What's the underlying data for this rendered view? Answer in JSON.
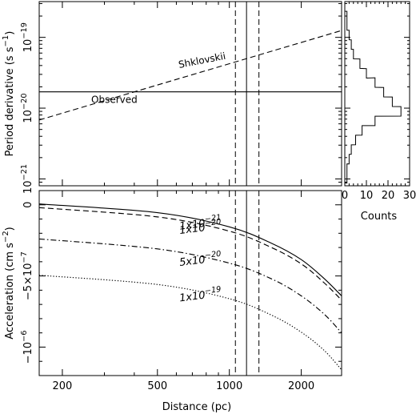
{
  "chart_data": [
    {
      "type": "line",
      "panel": "top",
      "ylabel": "Period derivative (s s",
      "ylabel_sup": "−1",
      "ylabel_close": ")",
      "xscale": "log",
      "yscale": "log",
      "xlim": [
        160,
        2950
      ],
      "ylim": [
        8e-22,
        3.2e-19
      ],
      "yticks": [
        {
          "v": 1e-21,
          "base": "10",
          "exp": "−21"
        },
        {
          "v": 1e-20,
          "base": "10",
          "exp": "−20"
        },
        {
          "v": 1e-19,
          "base": "10",
          "exp": "−19"
        }
      ],
      "series": [
        {
          "name": "Shklovskii",
          "style": "dashed",
          "x": [
            160,
            2950
          ],
          "y": [
            6.8e-21,
            1.25e-19
          ]
        },
        {
          "name": "Observed",
          "style": "solid",
          "x": [
            160,
            2950
          ],
          "y": [
            1.7e-20,
            1.7e-20
          ]
        }
      ],
      "vlines": [
        {
          "x": 1060,
          "style": "dashed"
        },
        {
          "x": 1180,
          "style": "solid"
        },
        {
          "x": 1330,
          "style": "dashed"
        }
      ]
    },
    {
      "type": "histogram",
      "panel": "top-right",
      "xlabel": "Counts",
      "xlim": [
        0,
        30
      ],
      "xticks": [
        "0",
        "10",
        "20",
        "30"
      ],
      "orientation": "horizontal",
      "bins": [
        {
          "pdot": 2e-19,
          "count": 1
        },
        {
          "pdot": 1.47e-19,
          "count": 1
        },
        {
          "pdot": 1.08e-19,
          "count": 2
        },
        {
          "pdot": 7.9e-20,
          "count": 3
        },
        {
          "pdot": 5.8e-20,
          "count": 4
        },
        {
          "pdot": 4.25e-20,
          "count": 7
        },
        {
          "pdot": 3.1e-20,
          "count": 10
        },
        {
          "pdot": 2.3e-20,
          "count": 14
        },
        {
          "pdot": 1.68e-20,
          "count": 18
        },
        {
          "pdot": 1.23e-20,
          "count": 22
        },
        {
          "pdot": 9e-21,
          "count": 26
        },
        {
          "pdot": 6.6e-21,
          "count": 14
        },
        {
          "pdot": 4.85e-21,
          "count": 8
        },
        {
          "pdot": 3.55e-21,
          "count": 5
        },
        {
          "pdot": 2.6e-21,
          "count": 3
        },
        {
          "pdot": 1.9e-21,
          "count": 2
        },
        {
          "pdot": 1.4e-21,
          "count": 1
        },
        {
          "pdot": 1.02e-21,
          "count": 1
        }
      ]
    },
    {
      "type": "line",
      "panel": "bottom",
      "xlabel": "Distance (pc)",
      "ylabel": "Acceleration (cm s",
      "ylabel_sup": "−2",
      "ylabel_close": ")",
      "xscale": "log",
      "xlim": [
        160,
        2950
      ],
      "ylim": [
        -1.2e-06,
        1e-07
      ],
      "xticks": [
        200,
        500,
        1000,
        2000
      ],
      "yticks": [
        {
          "v": 0,
          "label": "0"
        },
        {
          "v": -5e-07,
          "label": "−5×10",
          "exp": "−7"
        },
        {
          "v": -1e-06,
          "label": "−10",
          "exp": "−6"
        }
      ],
      "series": [
        {
          "name": "1x10−21",
          "label_coef": "1x10",
          "label_exp": "−21",
          "style": "solid",
          "x": [
            160,
            500,
            1000,
            1500,
            2000,
            2500,
            2950
          ],
          "y": [
            6e-09,
            -5.5e-08,
            -1.55e-07,
            -2.7e-07,
            -3.85e-07,
            -5.2e-07,
            -6.4e-07
          ]
        },
        {
          "name": "1x10−20",
          "label_coef": "1x10",
          "label_exp": "−20",
          "style": "dashed",
          "x": [
            160,
            500,
            1000,
            1500,
            2000,
            2500,
            2950
          ],
          "y": [
            -2e-08,
            -8.5e-08,
            -1.85e-07,
            -3e-07,
            -4.15e-07,
            -5.5e-07,
            -6.7e-07
          ]
        },
        {
          "name": "5x10−20",
          "label_coef": "5x10",
          "label_exp": "−20",
          "style": "dashdot",
          "x": [
            160,
            500,
            1000,
            1500,
            2000,
            2500,
            2950
          ],
          "y": [
            -2.4e-07,
            -3.1e-07,
            -4.1e-07,
            -5.2e-07,
            -6.4e-07,
            -7.7e-07,
            -9e-07
          ]
        },
        {
          "name": "1x10−19",
          "label_coef": "1x10",
          "label_exp": "−19",
          "style": "dotted",
          "x": [
            160,
            500,
            1000,
            1500,
            2000,
            2500,
            2950
          ],
          "y": [
            -4.95e-07,
            -5.6e-07,
            -6.6e-07,
            -7.75e-07,
            -8.95e-07,
            -1.025e-06,
            -1.16e-06
          ]
        }
      ],
      "vlines": [
        {
          "x": 1060,
          "style": "dashed"
        },
        {
          "x": 1180,
          "style": "solid"
        },
        {
          "x": 1330,
          "style": "dashed"
        }
      ]
    }
  ]
}
